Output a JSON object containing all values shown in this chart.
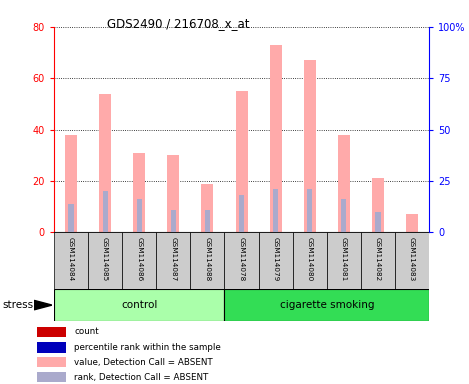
{
  "title": "GDS2490 / 216708_x_at",
  "samples": [
    "GSM114084",
    "GSM114085",
    "GSM114086",
    "GSM114087",
    "GSM114088",
    "GSM114078",
    "GSM114079",
    "GSM114080",
    "GSM114081",
    "GSM114082",
    "GSM114083"
  ],
  "pink_values": [
    38,
    54,
    31,
    30,
    19,
    55,
    73,
    67,
    38,
    21,
    7
  ],
  "blue_values": [
    14,
    20,
    16,
    11,
    11,
    18,
    21,
    21,
    16,
    10,
    0
  ],
  "ylim_left": [
    0,
    80
  ],
  "ylim_right": [
    0,
    100
  ],
  "yticks_left": [
    0,
    20,
    40,
    60,
    80
  ],
  "yticks_right": [
    0,
    25,
    50,
    75,
    100
  ],
  "ytick_labels_right": [
    "0",
    "25",
    "50",
    "75",
    "100%"
  ],
  "pink_color": "#FFAAAA",
  "blue_color": "#AAAACC",
  "red_color": "#CC0000",
  "dark_blue_color": "#0000BB",
  "group_labels": [
    "control",
    "cigarette smoking"
  ],
  "control_count": 5,
  "smoking_count": 6,
  "stress_label": "stress",
  "legend_items": [
    {
      "color": "#CC0000",
      "label": "count"
    },
    {
      "color": "#0000BB",
      "label": "percentile rank within the sample"
    },
    {
      "color": "#FFAAAA",
      "label": "value, Detection Call = ABSENT"
    },
    {
      "color": "#AAAACC",
      "label": "rank, Detection Call = ABSENT"
    }
  ],
  "control_green": "#AAFFAA",
  "smoking_green": "#33DD55",
  "sample_gray": "#CCCCCC"
}
